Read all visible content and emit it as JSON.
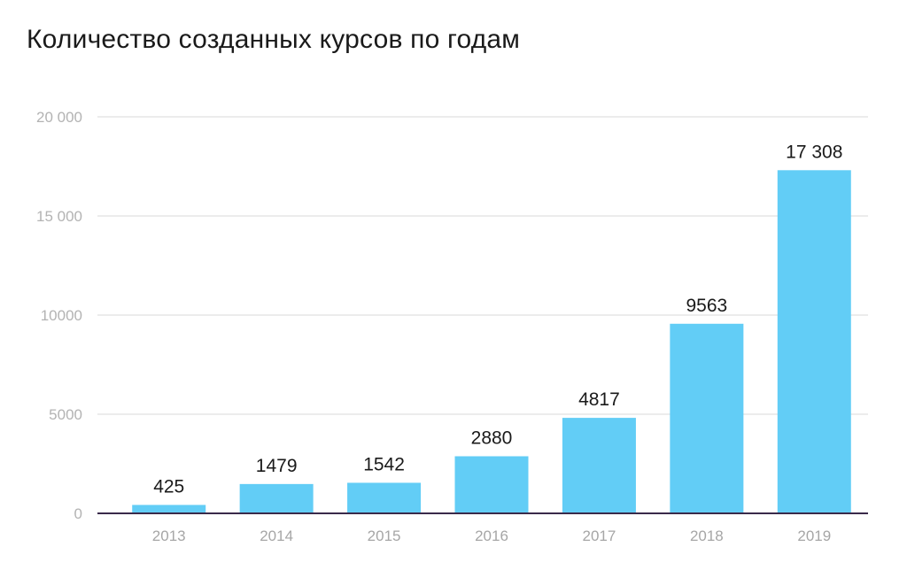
{
  "chart_data": {
    "type": "bar",
    "title": "Количество созданных курсов по годам",
    "xlabel": "",
    "ylabel": "",
    "categories": [
      "2013",
      "2014",
      "2015",
      "2016",
      "2017",
      "2018",
      "2019"
    ],
    "values": [
      425,
      1479,
      1542,
      2880,
      4817,
      9563,
      17308
    ],
    "data_labels": [
      "425",
      "1479",
      "1542",
      "2880",
      "4817",
      "9563",
      "17 308"
    ],
    "ylim": [
      0,
      20000
    ],
    "y_ticks": [
      0,
      5000,
      10000,
      15000,
      20000
    ],
    "y_tick_labels": [
      "0",
      "5000",
      "10000",
      "15 000",
      "20 000"
    ],
    "grid": true,
    "legend": "none",
    "colors": {
      "bar": "#62cdf6",
      "grid": "#d9d9d9",
      "baseline": "#3a2a4a"
    }
  }
}
